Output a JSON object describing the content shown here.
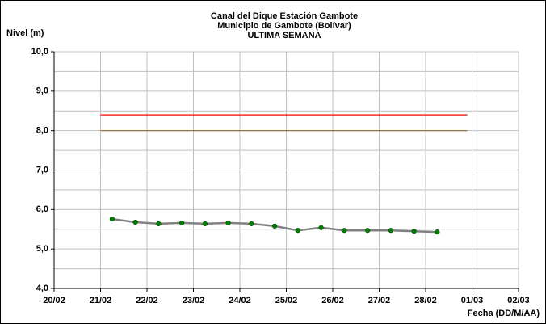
{
  "chart_data": {
    "type": "line",
    "title": [
      "Canal del Dique  Estación Gambote",
      "Municipio de Gambote (Bolívar)",
      "ULTIMA SEMANA"
    ],
    "y_label": "Nivel (m)",
    "x_label": "Fecha (DD/M/AA)",
    "xlim": [
      0,
      11
    ],
    "xticks": [
      {
        "value": 0,
        "label": "20/02"
      },
      {
        "value": 1,
        "label": "21/02"
      },
      {
        "value": 2,
        "label": "22/02"
      },
      {
        "value": 3,
        "label": "23/02"
      },
      {
        "value": 4,
        "label": "24/02"
      },
      {
        "value": 5,
        "label": "25/02"
      },
      {
        "value": 6,
        "label": "26/02"
      },
      {
        "value": 7,
        "label": "27/02"
      },
      {
        "value": 8,
        "label": "28/02"
      },
      {
        "value": 9,
        "label": "01/03"
      },
      {
        "value": 10,
        "label": "02/03"
      }
    ],
    "ylim": [
      4,
      10
    ],
    "yticks": [
      {
        "value": 4,
        "label": "4,0"
      },
      {
        "value": 5,
        "label": "5,0"
      },
      {
        "value": 6,
        "label": "6,0"
      },
      {
        "value": 7,
        "label": "7,0"
      },
      {
        "value": 8,
        "label": "8,0"
      },
      {
        "value": 9,
        "label": "9,0"
      },
      {
        "value": 10,
        "label": "10,0"
      }
    ],
    "minor_yticks": [
      4.5,
      5.5,
      6.5,
      7.5,
      8.5,
      9.5
    ],
    "grid": true,
    "x": [
      1.25,
      1.75,
      2.25,
      2.75,
      3.25,
      3.75,
      4.25,
      4.75,
      5.25,
      5.75,
      6.25,
      6.75,
      7.25,
      7.75,
      8.25
    ],
    "series": [
      {
        "color": "#808080",
        "marker_color": "#008000",
        "values": [
          5.76,
          5.68,
          5.64,
          5.66,
          5.64,
          5.66,
          5.64,
          5.58,
          5.47,
          5.54,
          5.47,
          5.47,
          5.47,
          5.45,
          5.43
        ]
      }
    ],
    "reference_lines": [
      {
        "value": 8.4,
        "color": "#ff0000",
        "x": [
          1,
          8.9
        ]
      },
      {
        "value": 8.0,
        "color": "#996633",
        "x": [
          1,
          8.9
        ]
      }
    ]
  }
}
